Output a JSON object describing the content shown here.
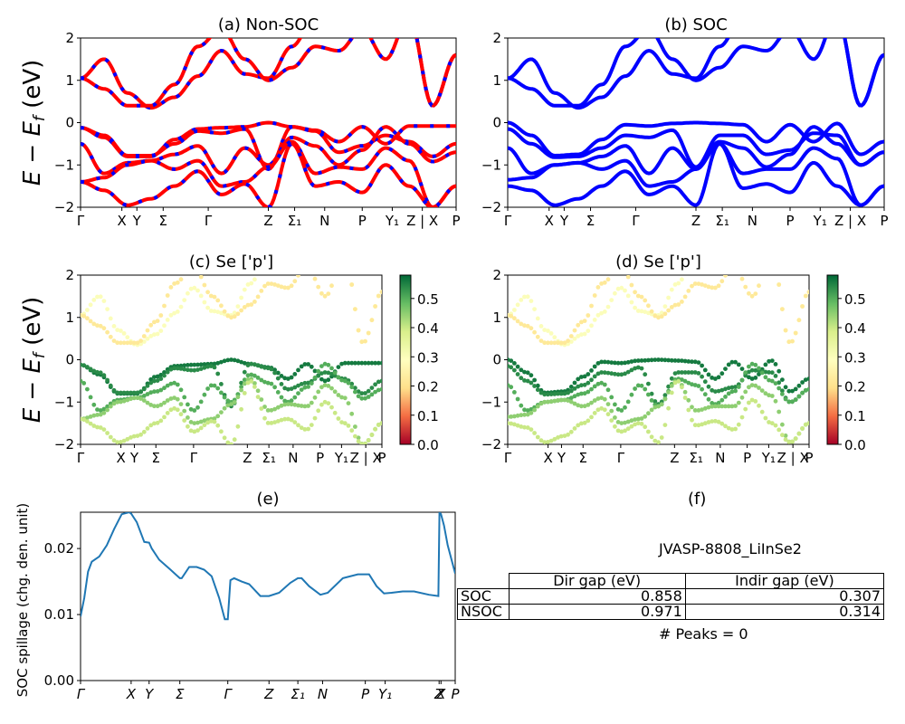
{
  "figure": {
    "colors": {
      "nonsoc_line": "#ff0000",
      "nonsoc_dash": "#0000ff",
      "soc_line": "#0000ff",
      "spillage_line": "#1f77b4"
    },
    "colormap": {
      "name": "RdYlGn",
      "stops": [
        "#a50026",
        "#f46d43",
        "#fee08b",
        "#ffffbf",
        "#d9ef8b",
        "#66bd63",
        "#006837"
      ]
    }
  },
  "chart_data": [
    {
      "id": "a",
      "type": "line",
      "title": "(a) Non-SOC",
      "ylabel": "E − E_f (eV)",
      "ylim": [
        -2,
        2
      ],
      "yticks": [
        "2",
        "1",
        "0",
        "−1",
        "−2"
      ],
      "xticks": [
        "Γ",
        "X",
        "Y",
        "Σ",
        "Γ",
        "Z",
        "Σ₁",
        "N",
        "P",
        "Y₁",
        "Z | X",
        "P"
      ],
      "xtick_pos": [
        0,
        0.11,
        0.15,
        0.22,
        0.34,
        0.5,
        0.57,
        0.65,
        0.75,
        0.83,
        0.91,
        1.0
      ],
      "bands": [
        [
          1.05,
          1.5,
          0.7,
          0.35,
          0.6,
          1.1,
          1.7,
          1.15,
          1.05,
          1.8,
          2.5,
          2.5,
          2.5,
          2.5,
          2.5,
          0.4,
          1.6
        ],
        [
          1.05,
          0.8,
          0.4,
          0.4,
          0.9,
          1.8,
          2.2,
          1.5,
          1.0,
          1.3,
          1.8,
          1.7,
          2.2,
          1.5,
          2.5,
          0.4,
          1.6
        ],
        [
          -0.12,
          -0.35,
          -0.8,
          -0.8,
          -0.4,
          -0.15,
          -0.12,
          -0.1,
          0.0,
          -0.1,
          -0.18,
          -0.45,
          -0.1,
          -0.5,
          -0.08,
          -0.08,
          -0.08
        ],
        [
          -0.12,
          -0.3,
          -0.78,
          -0.78,
          -0.5,
          -0.2,
          -0.25,
          -0.15,
          -1.1,
          -0.1,
          -0.2,
          -0.7,
          -0.55,
          -0.3,
          -0.45,
          -0.8,
          -0.5
        ],
        [
          -0.5,
          -1.2,
          -0.95,
          -0.9,
          -0.75,
          -0.55,
          -1.2,
          -0.6,
          -1.0,
          -0.35,
          -0.55,
          -1.0,
          -0.65,
          -0.1,
          -0.5,
          -0.92,
          -0.7
        ],
        [
          -1.4,
          -1.3,
          -1.0,
          -0.9,
          -1.1,
          -0.9,
          -1.5,
          -1.4,
          -1.05,
          -0.45,
          -1.2,
          -1.05,
          -1.1,
          -0.6,
          -0.9,
          -2.0,
          -1.5
        ],
        [
          -1.4,
          -1.6,
          -1.95,
          -1.8,
          -1.5,
          -1.15,
          -1.7,
          -1.45,
          -2.0,
          -0.5,
          -1.5,
          -1.4,
          -1.65,
          -1.0,
          -1.5,
          -2.0,
          -1.5
        ]
      ]
    },
    {
      "id": "b",
      "type": "line",
      "title": "(b) SOC",
      "ylim": [
        -2,
        2
      ],
      "yticks": [
        "2",
        "1",
        "0",
        "−1",
        "−2"
      ],
      "xticks": [
        "Γ",
        "X",
        "Y",
        "Σ",
        "Γ",
        "Z",
        "Σ₁",
        "N",
        "P",
        "Y₁",
        "Z | X",
        "P"
      ],
      "xtick_pos": [
        0,
        0.11,
        0.15,
        0.22,
        0.34,
        0.5,
        0.57,
        0.65,
        0.75,
        0.83,
        0.91,
        1.0
      ],
      "bands": [
        [
          1.05,
          1.5,
          0.7,
          0.35,
          0.6,
          1.1,
          1.7,
          1.15,
          1.05,
          1.8,
          2.5,
          2.5,
          2.5,
          2.5,
          2.5,
          0.4,
          1.6
        ],
        [
          1.05,
          0.8,
          0.4,
          0.4,
          0.9,
          1.8,
          2.2,
          1.5,
          1.0,
          1.3,
          1.8,
          1.7,
          2.2,
          1.5,
          2.5,
          0.4,
          1.6
        ],
        [
          0.0,
          -0.3,
          -0.78,
          -0.75,
          -0.4,
          -0.05,
          -0.08,
          -0.02,
          0.0,
          -0.02,
          -0.05,
          -0.45,
          -0.05,
          -0.45,
          -0.02,
          -0.75,
          -0.45
        ],
        [
          -0.15,
          -0.5,
          -0.82,
          -0.8,
          -0.6,
          -0.3,
          -0.35,
          -0.18,
          -1.05,
          -0.3,
          -0.3,
          -0.75,
          -0.65,
          -0.25,
          -0.3,
          -1.0,
          -0.7
        ],
        [
          -0.6,
          -1.2,
          -1.0,
          -0.95,
          -0.8,
          -0.55,
          -1.2,
          -0.6,
          -1.1,
          -0.45,
          -0.6,
          -1.05,
          -0.75,
          -0.1,
          -0.5,
          -1.0,
          -0.7
        ],
        [
          -1.35,
          -1.3,
          -1.0,
          -0.95,
          -1.1,
          -0.9,
          -1.5,
          -1.4,
          -1.1,
          -0.5,
          -1.2,
          -1.1,
          -1.1,
          -0.6,
          -0.85,
          -1.95,
          -1.5
        ],
        [
          -1.5,
          -1.6,
          -1.95,
          -1.8,
          -1.5,
          -1.15,
          -1.7,
          -1.5,
          -1.95,
          -0.5,
          -1.55,
          -1.45,
          -1.65,
          -0.95,
          -1.5,
          -1.95,
          -1.5
        ]
      ]
    },
    {
      "id": "c",
      "type": "scatter",
      "title": "(c)  Se ['p']",
      "ylabel": "E − E_f (eV)",
      "ylim": [
        -2,
        2
      ],
      "yticks": [
        "2",
        "1",
        "0",
        "−1",
        "−2"
      ],
      "xticks": [
        "Γ",
        "X",
        "Y",
        "Σ",
        "Γ",
        "Z",
        "Σ₁",
        "N",
        "P",
        "Y₁",
        "Z | X",
        "P"
      ],
      "xtick_pos": [
        0,
        0.15,
        0.2,
        0.28,
        0.42,
        0.62,
        0.7,
        0.79,
        0.89,
        0.97,
        1.06,
        1.12
      ],
      "colorbar": {
        "range": [
          0.0,
          0.58
        ],
        "ticks": [
          "0.5",
          "0.4",
          "0.3",
          "0.2",
          "0.1",
          "0.0"
        ]
      },
      "weights_by_band": [
        0.3,
        0.22,
        0.56,
        0.54,
        0.5,
        0.45,
        0.4
      ]
    },
    {
      "id": "d",
      "type": "scatter",
      "title": "(d) Se ['p']",
      "ylim": [
        -2,
        2
      ],
      "yticks": [
        "2",
        "1",
        "0",
        "−1",
        "−2"
      ],
      "xticks": [
        "Γ",
        "X",
        "Y",
        "Σ",
        "Γ",
        "Z",
        "Σ₁",
        "N",
        "P",
        "Y₁",
        "Z | X",
        "P"
      ],
      "xtick_pos": [
        0,
        0.15,
        0.2,
        0.28,
        0.42,
        0.62,
        0.7,
        0.79,
        0.89,
        0.97,
        1.06,
        1.12
      ],
      "colorbar": {
        "range": [
          0.0,
          0.58
        ],
        "ticks": [
          "0.5",
          "0.4",
          "0.3",
          "0.2",
          "0.1",
          "0.0"
        ]
      },
      "weights_by_band": [
        0.3,
        0.22,
        0.56,
        0.54,
        0.5,
        0.45,
        0.4
      ]
    },
    {
      "id": "e",
      "type": "line",
      "title": "(e)",
      "ylabel": "SOC spillage (chg. den. unit)",
      "ylim": [
        0,
        0.0255
      ],
      "yticks": [
        "0.02",
        "0.01",
        "0.00"
      ],
      "ytick_values": [
        0.02,
        0.01,
        0.0
      ],
      "xticks": [
        "Γ",
        "X",
        "Y",
        "Σ",
        "Γ",
        "Z",
        "Σ₁",
        "N",
        "P",
        "Y₁",
        "Z",
        "X",
        "P"
      ],
      "xtick_pos": [
        0,
        0.135,
        0.183,
        0.265,
        0.393,
        0.503,
        0.58,
        0.646,
        0.76,
        0.813,
        0.957,
        0.962,
        1.0
      ],
      "x": [
        0,
        0.01,
        0.02,
        0.03,
        0.05,
        0.07,
        0.09,
        0.11,
        0.13,
        0.135,
        0.15,
        0.17,
        0.183,
        0.19,
        0.21,
        0.24,
        0.265,
        0.27,
        0.29,
        0.31,
        0.33,
        0.35,
        0.37,
        0.385,
        0.393,
        0.4,
        0.41,
        0.43,
        0.45,
        0.48,
        0.503,
        0.53,
        0.56,
        0.58,
        0.59,
        0.61,
        0.64,
        0.66,
        0.7,
        0.74,
        0.77,
        0.79,
        0.81,
        0.83,
        0.86,
        0.89,
        0.93,
        0.955,
        0.958,
        0.962,
        0.97,
        0.98,
        1.0
      ],
      "y": [
        0.0097,
        0.0125,
        0.0165,
        0.018,
        0.0188,
        0.0205,
        0.023,
        0.0252,
        0.0255,
        0.0253,
        0.024,
        0.021,
        0.0209,
        0.02,
        0.0183,
        0.0168,
        0.0155,
        0.0155,
        0.0172,
        0.0172,
        0.0168,
        0.0158,
        0.0125,
        0.0093,
        0.0093,
        0.0152,
        0.0155,
        0.015,
        0.0146,
        0.0128,
        0.0128,
        0.0133,
        0.0148,
        0.0155,
        0.0155,
        0.0143,
        0.013,
        0.0133,
        0.0155,
        0.0161,
        0.0161,
        0.0143,
        0.0132,
        0.0133,
        0.0135,
        0.0135,
        0.013,
        0.0128,
        0.0255,
        0.0252,
        0.0235,
        0.0205,
        0.0162
      ]
    }
  ],
  "panel_f": {
    "title": "(f)",
    "material": "JVASP-8808_LiInSe2",
    "columns": [
      "Dir gap (eV)",
      "Indir gap (eV)"
    ],
    "rows": [
      {
        "label": "SOC",
        "dir": "0.858",
        "indir": "0.307"
      },
      {
        "label": "NSOC",
        "dir": "0.971",
        "indir": "0.314"
      }
    ],
    "peaks": "# Peaks = 0"
  }
}
